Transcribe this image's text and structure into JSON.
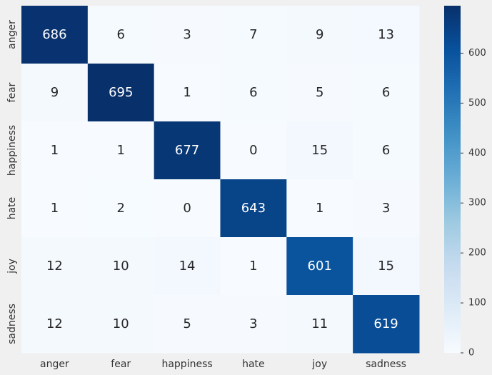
{
  "chart_data": {
    "type": "heatmap",
    "title": "",
    "xlabel": "",
    "ylabel": "",
    "x_categories": [
      "anger",
      "fear",
      "happiness",
      "hate",
      "joy",
      "sadness"
    ],
    "y_categories": [
      "anger",
      "fear",
      "happiness",
      "hate",
      "joy",
      "sadness"
    ],
    "values": [
      [
        686,
        6,
        3,
        7,
        9,
        13
      ],
      [
        9,
        695,
        1,
        6,
        5,
        6
      ],
      [
        1,
        1,
        677,
        0,
        15,
        6
      ],
      [
        1,
        2,
        0,
        643,
        1,
        3
      ],
      [
        12,
        10,
        14,
        1,
        601,
        15
      ],
      [
        12,
        10,
        5,
        3,
        11,
        619
      ]
    ],
    "value_range": [
      0,
      695
    ],
    "colormap": "Blues",
    "colors": {
      "low": "#f7fbff",
      "high": "#08306b",
      "light_text": "#ffffff",
      "dark_text": "#262626",
      "background": "#f0f0f0"
    },
    "colorbar": {
      "ticks": [
        0,
        100,
        200,
        300,
        400,
        500,
        600
      ],
      "ticks_display": [
        "0",
        "100",
        "200",
        "300",
        "400",
        "500",
        "600"
      ]
    },
    "annotations_visible": true
  }
}
